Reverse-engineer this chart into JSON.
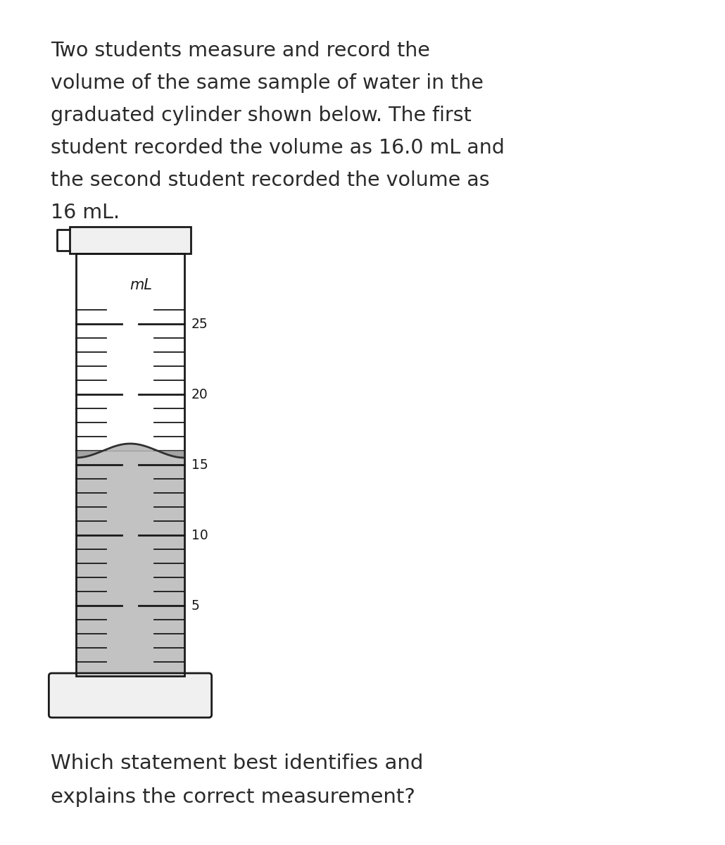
{
  "paragraph_line1": "Two students measure and record the",
  "paragraph_line2": "volume of the same sample of water in the",
  "paragraph_line3": "graduated cylinder shown below. The first",
  "paragraph_line4": "student recorded the volume as 16.0 mL and",
  "paragraph_line5": "the second student recorded the volume as",
  "paragraph_line6": "16 mL.",
  "question_line1": "Which statement best identifies and",
  "question_line2": "explains the correct measurement?",
  "background_color": "#ffffff",
  "text_color": "#2a2a2a",
  "font_size_para": 20.5,
  "font_size_question": 21,
  "cylinder_label": "mL",
  "tick_labels": [
    5,
    10,
    15,
    20,
    25
  ],
  "water_level": 16.0,
  "ml_min": 0,
  "ml_max": 30
}
